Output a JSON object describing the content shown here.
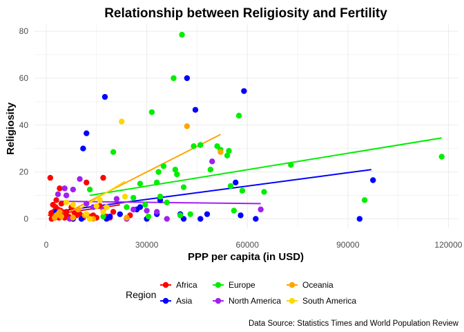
{
  "chart_data": {
    "type": "scatter",
    "title": "Relationship between Religiosity and Fertility",
    "xlabel": "PPP per capita (in USD)",
    "ylabel": "Religiosity",
    "xlim": [
      -3500,
      123000
    ],
    "ylim": [
      -4,
      83
    ],
    "x_ticks": [
      0,
      30000,
      60000,
      90000,
      120000
    ],
    "x_tick_labels": [
      "0",
      "30000",
      "60000",
      "90000",
      "120000"
    ],
    "y_ticks": [
      0,
      20,
      40,
      60,
      80
    ],
    "y_tick_labels": [
      "0",
      "20",
      "40",
      "60",
      "80"
    ],
    "grid": true,
    "legend": {
      "title": "Region",
      "position": "bottom"
    },
    "caption": "Data Source: Statistics Times and World Population Review",
    "series": [
      {
        "name": "Africa",
        "color": "#ff0000",
        "points": [
          [
            1200,
            17.5
          ],
          [
            1500,
            2.5
          ],
          [
            1800,
            1.0
          ],
          [
            2000,
            0.5
          ],
          [
            2200,
            3.0
          ],
          [
            2500,
            2.0
          ],
          [
            2800,
            5.0
          ],
          [
            3000,
            8.0
          ],
          [
            3200,
            1.5
          ],
          [
            3500,
            4.0
          ],
          [
            3800,
            0.5
          ],
          [
            4000,
            13.0
          ],
          [
            4300,
            3.5
          ],
          [
            4500,
            6.5
          ],
          [
            5000,
            1.0
          ],
          [
            5500,
            0.5
          ],
          [
            6000,
            3.0
          ],
          [
            6500,
            1.0
          ],
          [
            7000,
            0.5
          ],
          [
            7500,
            5.0
          ],
          [
            8000,
            0.0
          ],
          [
            9000,
            1.5
          ],
          [
            10000,
            2.0
          ],
          [
            11000,
            0.5
          ],
          [
            12000,
            15.5
          ],
          [
            13000,
            1.0
          ],
          [
            14000,
            1.5
          ],
          [
            15000,
            0.5
          ],
          [
            16000,
            5.5
          ],
          [
            17000,
            17.5
          ],
          [
            18000,
            1.0
          ],
          [
            19000,
            0.5
          ],
          [
            20000,
            3.0
          ],
          [
            25000,
            1.5
          ],
          [
            2000,
            6.0
          ],
          [
            3000,
            1.0
          ],
          [
            1600,
            0.0
          ],
          [
            2600,
            0.5
          ],
          [
            5200,
            1.0
          ],
          [
            8500,
            2.5
          ]
        ],
        "trend": [
          [
            500,
            1.5
          ],
          [
            22000,
            6.0
          ]
        ]
      },
      {
        "name": "Asia",
        "color": "#0000ff",
        "points": [
          [
            3000,
            3.0
          ],
          [
            8000,
            0.0
          ],
          [
            10500,
            0.0
          ],
          [
            11000,
            30.0
          ],
          [
            12000,
            36.5
          ],
          [
            17500,
            52.0
          ],
          [
            18000,
            0.0
          ],
          [
            19000,
            1.0
          ],
          [
            22000,
            2.0
          ],
          [
            27000,
            4.0
          ],
          [
            28000,
            5.0
          ],
          [
            30000,
            0.0
          ],
          [
            33000,
            2.0
          ],
          [
            34000,
            8.0
          ],
          [
            40000,
            2.0
          ],
          [
            41000,
            0.0
          ],
          [
            42000,
            60.0
          ],
          [
            44500,
            46.5
          ],
          [
            46000,
            0.0
          ],
          [
            48000,
            2.0
          ],
          [
            56500,
            15.5
          ],
          [
            58000,
            1.5
          ],
          [
            59000,
            54.5
          ],
          [
            62500,
            0.0
          ],
          [
            93500,
            0.0
          ],
          [
            97500,
            16.5
          ]
        ],
        "trend": [
          [
            2000,
            3.0
          ],
          [
            97000,
            21.0
          ]
        ]
      },
      {
        "name": "Europe",
        "color": "#00ee00",
        "points": [
          [
            13000,
            12.5
          ],
          [
            17000,
            1.0
          ],
          [
            20000,
            28.5
          ],
          [
            24000,
            5.0
          ],
          [
            26000,
            9.0
          ],
          [
            28000,
            15.0
          ],
          [
            29500,
            6.0
          ],
          [
            30500,
            1.0
          ],
          [
            31500,
            45.5
          ],
          [
            33000,
            15.5
          ],
          [
            33500,
            20.0
          ],
          [
            34000,
            9.5
          ],
          [
            35000,
            22.5
          ],
          [
            36000,
            7.0
          ],
          [
            38000,
            60.0
          ],
          [
            38500,
            21.0
          ],
          [
            39000,
            19.0
          ],
          [
            40000,
            1.5
          ],
          [
            40500,
            78.5
          ],
          [
            41000,
            13.5
          ],
          [
            43000,
            2.0
          ],
          [
            44000,
            31.0
          ],
          [
            46000,
            31.5
          ],
          [
            49000,
            21.0
          ],
          [
            51000,
            31.0
          ],
          [
            52000,
            29.5
          ],
          [
            54000,
            27.0
          ],
          [
            54500,
            29.0
          ],
          [
            55000,
            14.0
          ],
          [
            56000,
            3.5
          ],
          [
            57500,
            44.0
          ],
          [
            58500,
            12.0
          ],
          [
            65000,
            11.5
          ],
          [
            73000,
            23.0
          ],
          [
            95000,
            8.0
          ],
          [
            118000,
            26.5
          ]
        ],
        "trend": [
          [
            13000,
            10.0
          ],
          [
            118000,
            34.5
          ]
        ]
      },
      {
        "name": "North America",
        "color": "#a020f0",
        "points": [
          [
            3500,
            10.5
          ],
          [
            5500,
            13.0
          ],
          [
            6000,
            10.0
          ],
          [
            7000,
            0.0
          ],
          [
            8000,
            12.5
          ],
          [
            10000,
            17.0
          ],
          [
            12000,
            6.5
          ],
          [
            14000,
            5.0
          ],
          [
            17000,
            4.0
          ],
          [
            21000,
            8.5
          ],
          [
            24000,
            0.0
          ],
          [
            26000,
            4.0
          ],
          [
            30000,
            3.5
          ],
          [
            33000,
            3.0
          ],
          [
            36000,
            0.0
          ],
          [
            49500,
            24.5
          ],
          [
            64000,
            4.0
          ]
        ],
        "trend": [
          [
            4000,
            7.5
          ],
          [
            64000,
            6.5
          ]
        ]
      },
      {
        "name": "Oceania",
        "color": "#ffa500",
        "points": [
          [
            2500,
            0.5
          ],
          [
            3000,
            1.5
          ],
          [
            3500,
            2.0
          ],
          [
            4000,
            3.0
          ],
          [
            4500,
            1.0
          ],
          [
            8000,
            0.5
          ],
          [
            9500,
            4.0
          ],
          [
            11500,
            1.5
          ],
          [
            14000,
            0.0
          ],
          [
            24000,
            0.5
          ],
          [
            42000,
            39.5
          ],
          [
            52000,
            28.5
          ]
        ],
        "trend": [
          [
            2500,
            0.0
          ],
          [
            52000,
            36.0
          ]
        ]
      },
      {
        "name": "South America",
        "color": "#ffd700",
        "points": [
          [
            6000,
            7.0
          ],
          [
            8000,
            6.0
          ],
          [
            12000,
            2.0
          ],
          [
            13000,
            0.0
          ],
          [
            15000,
            5.5
          ],
          [
            16000,
            8.0
          ],
          [
            17000,
            3.0
          ],
          [
            18000,
            5.0
          ],
          [
            22500,
            41.5
          ],
          [
            23500,
            9.5
          ]
        ],
        "trend": [
          [
            5000,
            0.0
          ],
          [
            23500,
            16.0
          ]
        ]
      }
    ]
  }
}
